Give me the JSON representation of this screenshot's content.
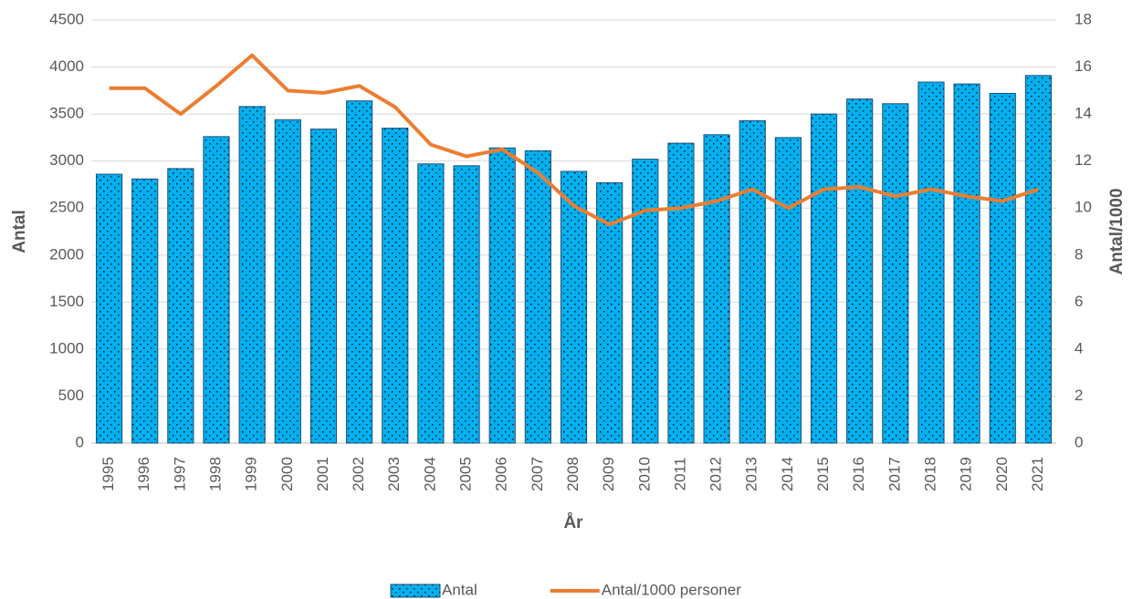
{
  "chart_data": {
    "type": "bar",
    "x_label": "År",
    "y_label": "Antal",
    "y2_label": "Antal/1000",
    "categories": [
      "1995",
      "1996",
      "1997",
      "1998",
      "1999",
      "2000",
      "2001",
      "2002",
      "2003",
      "2004",
      "2005",
      "2006",
      "2007",
      "2008",
      "2009",
      "2010",
      "2011",
      "2012",
      "2013",
      "2014",
      "2015",
      "2016",
      "2017",
      "2018",
      "2019",
      "2020",
      "2021"
    ],
    "series": [
      {
        "name": "Antal",
        "type": "bar",
        "color": "#00b0f0",
        "axis": "y",
        "values": [
          2860,
          2810,
          2920,
          3260,
          3580,
          3440,
          3340,
          3640,
          3350,
          2970,
          2950,
          3140,
          3110,
          2890,
          2770,
          3020,
          3190,
          3280,
          3430,
          3250,
          3500,
          3660,
          3610,
          3840,
          3820,
          3720,
          3910
        ]
      },
      {
        "name": "Antal/1000 personer",
        "type": "line",
        "color": "#ed7d31",
        "axis": "y2",
        "values": [
          15.1,
          15.1,
          14.0,
          15.2,
          16.5,
          15.0,
          14.9,
          15.2,
          14.3,
          12.7,
          12.2,
          12.5,
          11.5,
          10.1,
          9.3,
          9.9,
          10.0,
          10.3,
          10.8,
          10.0,
          10.8,
          10.9,
          10.5,
          10.8,
          10.5,
          10.3,
          10.8
        ]
      }
    ],
    "ylim": [
      0,
      4500
    ],
    "yticks": [
      0,
      500,
      1000,
      1500,
      2000,
      2500,
      3000,
      3500,
      4000,
      4500
    ],
    "y2lim": [
      0,
      18
    ],
    "y2ticks": [
      0,
      2,
      4,
      6,
      8,
      10,
      12,
      14,
      16,
      18
    ],
    "grid": true,
    "legend": "bottom"
  }
}
